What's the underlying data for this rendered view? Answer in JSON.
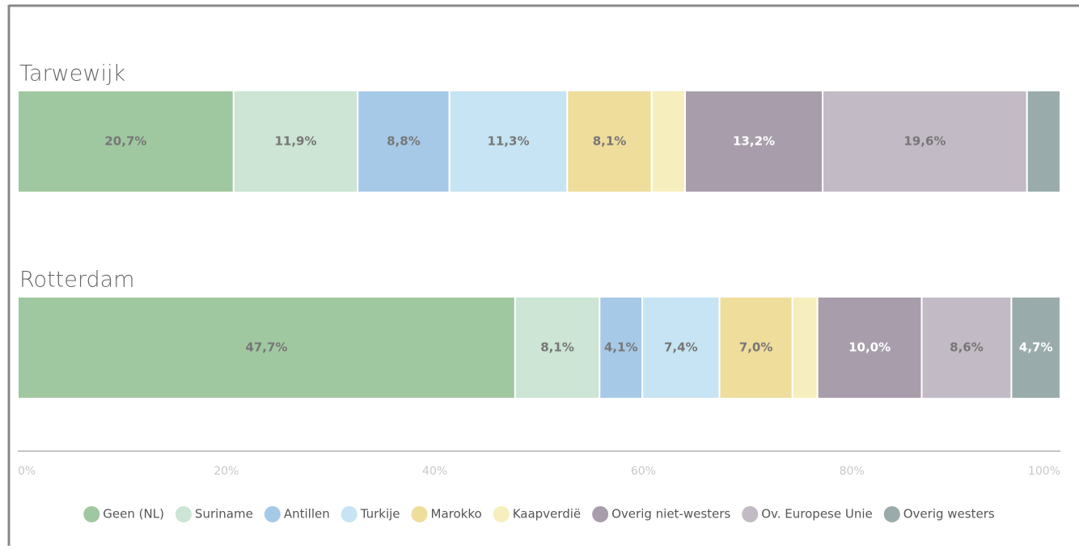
{
  "chart_data": {
    "type": "stacked-bar-horizontal",
    "categories": [
      "Tarwewijk",
      "Rotterdam"
    ],
    "xlim": [
      0,
      100
    ],
    "xticks": [
      {
        "value": 0,
        "label": "0%"
      },
      {
        "value": 20,
        "label": "20%"
      },
      {
        "value": 40,
        "label": "40%"
      },
      {
        "value": 60,
        "label": "60%"
      },
      {
        "value": 80,
        "label": "80%"
      },
      {
        "value": 100,
        "label": "100%"
      }
    ],
    "series": [
      {
        "name": "Geen (NL)",
        "color": "#a0c8a0",
        "label_color": "#777777",
        "values": [
          20.7,
          47.7
        ],
        "value_labels": [
          "20,7%",
          "47,7%"
        ]
      },
      {
        "name": "Suriname",
        "color": "#cce5d4",
        "label_color": "#777777",
        "values": [
          11.9,
          8.1
        ],
        "value_labels": [
          "11,9%",
          "8,1%"
        ]
      },
      {
        "name": "Antillen",
        "color": "#a7c9e8",
        "label_color": "#777777",
        "values": [
          8.8,
          4.1
        ],
        "value_labels": [
          "8,8%",
          "4,1%"
        ]
      },
      {
        "name": "Turkije",
        "color": "#c6e4f3",
        "label_color": "#777777",
        "values": [
          11.3,
          7.4
        ],
        "value_labels": [
          "11,3%",
          "7,4%"
        ]
      },
      {
        "name": "Marokko",
        "color": "#efdd9c",
        "label_color": "#777777",
        "values": [
          8.1,
          7.0
        ],
        "value_labels": [
          "8,1%",
          "7,0%"
        ]
      },
      {
        "name": "Kaapverdië",
        "color": "#f6efbd",
        "label_color": "#777777",
        "values": [
          3.2,
          2.4
        ],
        "value_labels": [
          null,
          null
        ]
      },
      {
        "name": "Overig niet-westers",
        "color": "#a89eab",
        "label_color": "#ffffff",
        "values": [
          13.2,
          10.0
        ],
        "value_labels": [
          "13,2%",
          "10,0%"
        ]
      },
      {
        "name": "Ov. Europese Unie",
        "color": "#c2bac5",
        "label_color": "#777777",
        "values": [
          19.6,
          8.6
        ],
        "value_labels": [
          "19,6%",
          "8,6%"
        ]
      },
      {
        "name": "Overig westers",
        "color": "#9aabab",
        "label_color": "#ffffff",
        "values": [
          3.2,
          4.7
        ],
        "value_labels": [
          null,
          "4,7%"
        ]
      }
    ]
  }
}
